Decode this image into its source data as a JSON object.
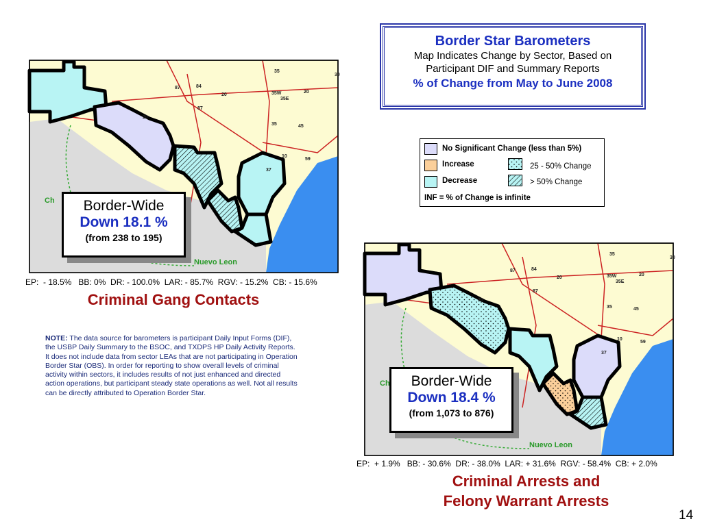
{
  "header": {
    "title": "Border Star Barometers",
    "subtitle_lines": [
      "Map Indicates Change by Sector, Based on",
      "Participant DIF and Summary Reports"
    ],
    "period": "% of Change from May to June 2008"
  },
  "legend": {
    "no_change": "No Significant Change (less than 5%)",
    "increase": "Increase",
    "decrease": "Decrease",
    "moderate": "25 - 50% Change",
    "large": "> 50% Change",
    "note": "INF = % of Change is infinite"
  },
  "maps": [
    {
      "border_wide": {
        "label": "Border-Wide",
        "change": "Down 18.1 %",
        "range": "(from 238 to 195)"
      },
      "stats": "EP:  - 18.5%   BB: 0%  DR: - 100.0%  LAR: - 85.7%  RGV: - 15.2%  CB: - 15.6%",
      "caption_lines": [
        "Criminal Gang Contacts"
      ],
      "map_labels": [
        "35",
        "30",
        "87",
        "84",
        "20",
        "35W",
        "20",
        "35E",
        "87",
        "20",
        "35",
        "45",
        "10",
        "59",
        "37",
        "Ch",
        "Nuevo Leon"
      ]
    },
    {
      "border_wide": {
        "label": "Border-Wide",
        "change": "Down 18.4 %",
        "range": "(from 1,073 to 876)"
      },
      "stats": "EP:  + 1.9%   BB: - 30.6%  DR: - 38.0%  LAR: + 31.6%  RGV: - 58.4%  CB: + 2.0%",
      "caption_lines": [
        "Criminal Arrests and",
        "Felony Warrant Arrests"
      ],
      "map_labels": [
        "35",
        "30",
        "87",
        "84",
        "20",
        "35W",
        "20",
        "35E",
        "87",
        "20",
        "35",
        "45",
        "10",
        "59",
        "37",
        "Ch",
        "Nuevo Leon"
      ]
    }
  ],
  "note": {
    "label": "NOTE:",
    "lines": [
      "The data source for barometers is participant Daily Input Forms (DIF),",
      "the USBP Daily Summary to the BSOC, and TXDPS HP Daily Activity Reports.",
      "It does not include data from sector LEAs that are not participating in Operation",
      "Border Star (OBS).  In order for reporting to show overall levels of criminal",
      "activity within sectors, it includes results of not just enhanced and directed",
      "action operations, but participant steady state operations as well.  Not all results",
      "can be directly attributed to Operation Border Star."
    ]
  },
  "page_number": "14"
}
